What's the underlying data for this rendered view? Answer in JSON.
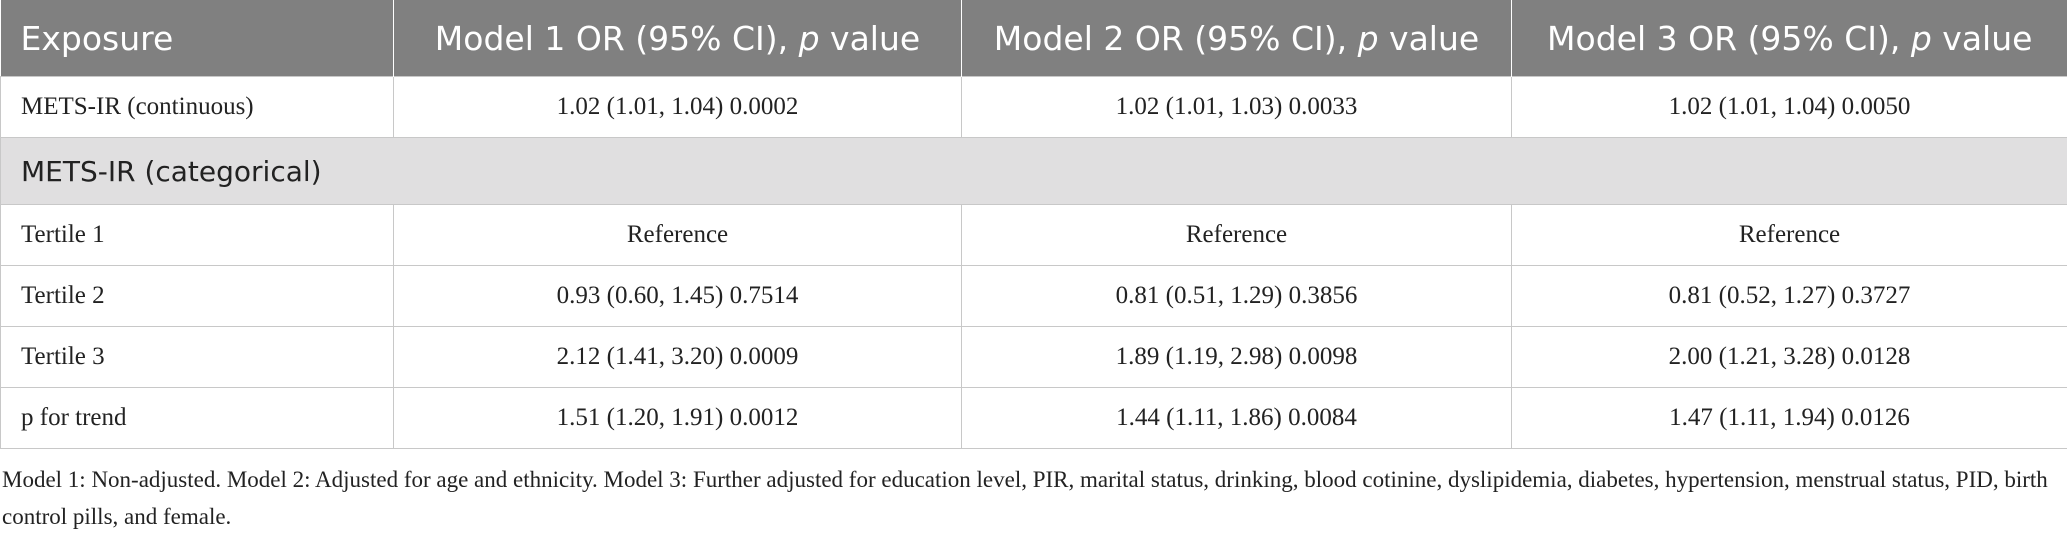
{
  "table": {
    "header": [
      [
        "Exposure"
      ],
      [
        "Model 1 OR (95% CI), ",
        "p",
        " value"
      ],
      [
        "Model 2 OR (95% CI), ",
        "p",
        " value"
      ],
      [
        "Model 3 OR (95% CI), ",
        "p",
        " value"
      ]
    ],
    "rows": [
      {
        "cells": [
          "METS-IR (continuous)",
          "1.02 (1.01, 1.04) 0.0002",
          "1.02 (1.01, 1.03) 0.0033",
          "1.02 (1.01, 1.04) 0.0050"
        ]
      },
      {
        "section": "METS-IR (categorical)"
      },
      {
        "cells": [
          "Tertile 1",
          "Reference",
          "Reference",
          "Reference"
        ]
      },
      {
        "cells": [
          "Tertile 2",
          "0.93 (0.60, 1.45) 0.7514",
          "0.81 (0.51, 1.29) 0.3856",
          "0.81 (0.52, 1.27) 0.3727"
        ]
      },
      {
        "cells": [
          "Tertile 3",
          "2.12 (1.41, 3.20) 0.0009",
          "1.89 (1.19, 2.98) 0.0098",
          "2.00 (1.21, 3.28) 0.0128"
        ]
      },
      {
        "cells": [
          "p for trend",
          "1.51 (1.20, 1.91) 0.0012",
          "1.44 (1.11, 1.86) 0.0084",
          "1.47 (1.11, 1.94) 0.0126"
        ]
      }
    ]
  },
  "footnote": "Model 1: Non-adjusted. Model 2: Adjusted for age and ethnicity. Model 3: Further adjusted for education level, PIR, marital status, drinking, blood cotinine, dyslipidemia, diabetes, hypertension, menstrual status, PID, birth control pills, and female."
}
